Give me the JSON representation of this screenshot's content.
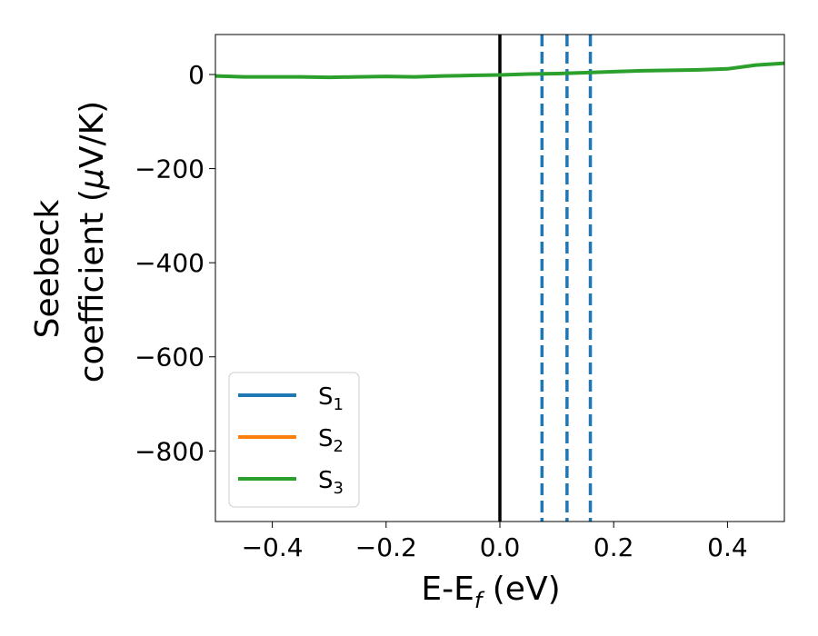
{
  "chart_data": {
    "type": "line",
    "xlabel": {
      "main": "E-E",
      "sub": "f",
      "unit": " (eV)"
    },
    "ylabel": {
      "line1": "Seebeck",
      "line2_pre": "coefficient  (",
      "line2_mu": "μ",
      "line2_post": "V/K)"
    },
    "xlim": [
      -0.5,
      0.5
    ],
    "ylim": [
      -950,
      85
    ],
    "xticks": [
      -0.4,
      -0.2,
      0.0,
      0.2,
      0.4
    ],
    "xtick_labels": [
      "−0.4",
      "−0.2",
      "0.0",
      "0.2",
      "0.4"
    ],
    "yticks": [
      0,
      -200,
      -400,
      -600,
      -800
    ],
    "ytick_labels": [
      "0",
      "−200",
      "−400",
      "−600",
      "−800"
    ],
    "grid": false,
    "legend_placement": "lower-left",
    "series": [
      {
        "name": "S",
        "sub": "1",
        "color": "#1f77b4",
        "x": [
          -0.5,
          0.5
        ],
        "y": [
          null,
          null
        ]
      },
      {
        "name": "S",
        "sub": "2",
        "color": "#ff7f0e",
        "x": [
          -0.5,
          0.5
        ],
        "y": [
          null,
          null
        ]
      },
      {
        "name": "S",
        "sub": "3",
        "color": "#2ca02c",
        "x": [
          -0.5,
          -0.45,
          -0.4,
          -0.35,
          -0.3,
          -0.25,
          -0.2,
          -0.15,
          -0.1,
          -0.05,
          0.0,
          0.05,
          0.1,
          0.15,
          0.2,
          0.25,
          0.3,
          0.35,
          0.4,
          0.45,
          0.5
        ],
        "y": [
          -3,
          -5,
          -5,
          -5,
          -6,
          -5,
          -4,
          -5,
          -3,
          -2,
          -1,
          1,
          2,
          4,
          6,
          8,
          9,
          10,
          12,
          20,
          24
        ]
      }
    ],
    "vlines": [
      {
        "x": 0.0,
        "color": "#000000",
        "style": "solid"
      },
      {
        "x": 0.074,
        "color": "#1f77b4",
        "style": "dashed"
      },
      {
        "x": 0.118,
        "color": "#1f77b4",
        "style": "dashed"
      },
      {
        "x": 0.159,
        "color": "#1f77b4",
        "style": "dashed"
      }
    ]
  }
}
